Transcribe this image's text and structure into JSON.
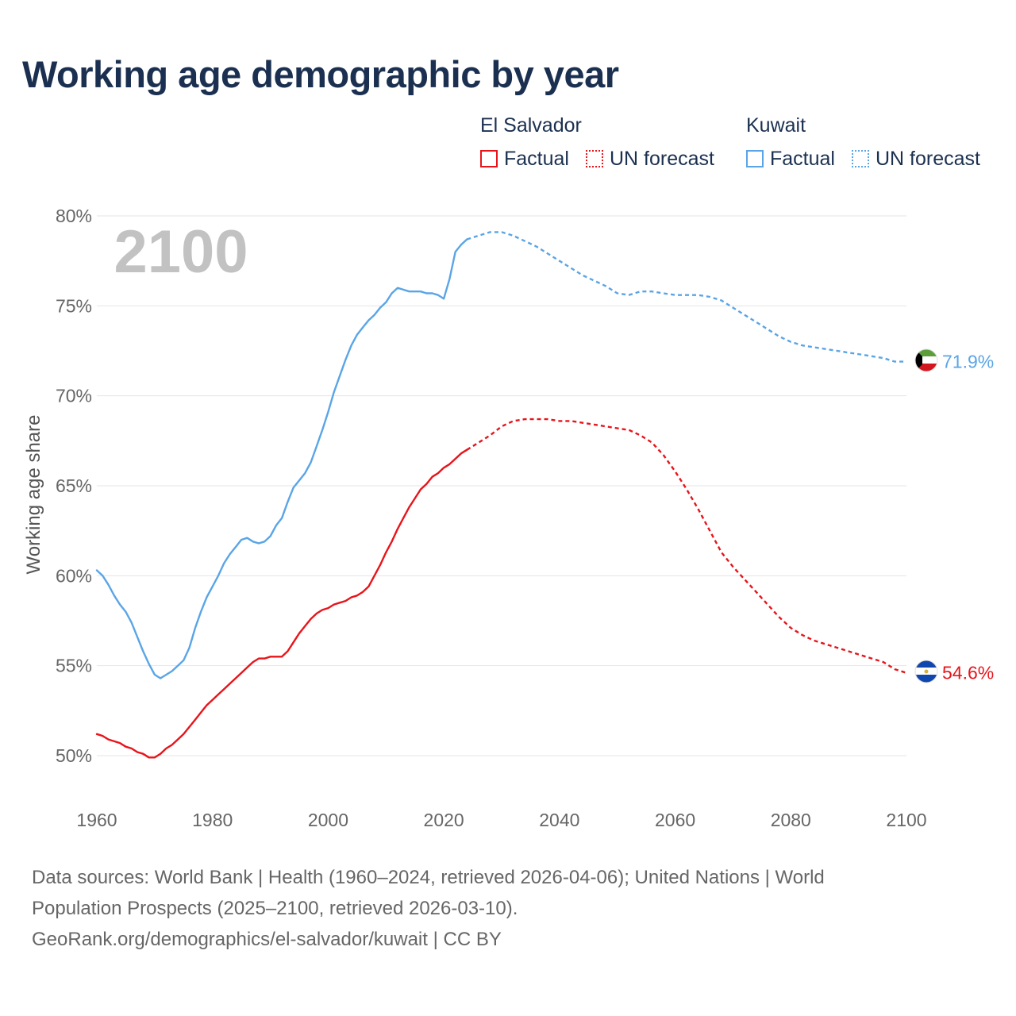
{
  "title": "Working age demographic by year",
  "legend": {
    "groups": [
      {
        "country": "El Salvador",
        "factual_label": "Factual",
        "forecast_label": "UN forecast",
        "color": "#e8141a"
      },
      {
        "country": "Kuwait",
        "factual_label": "Factual",
        "forecast_label": "UN forecast",
        "color": "#5aa5e6"
      }
    ]
  },
  "year_watermark": "2100",
  "footer": {
    "line1": "Data sources: World Bank | Health (1960–2024, retrieved 2026-04-06); United Nations | World",
    "line2": "Population Prospects (2025–2100, retrieved 2026-03-10).",
    "line3": "GeoRank.org/demographics/el-salvador/kuwait | CC BY"
  },
  "chart_data": {
    "type": "line",
    "title": "Working age demographic by year",
    "xlabel": "",
    "ylabel": "Working age share",
    "xlim": [
      1960,
      2100
    ],
    "ylim": [
      48,
      81
    ],
    "x_ticks": [
      1960,
      1980,
      2000,
      2020,
      2040,
      2060,
      2080,
      2100
    ],
    "y_ticks": [
      50,
      55,
      60,
      65,
      70,
      75,
      80
    ],
    "x_tick_labels": [
      "1960",
      "1980",
      "2000",
      "2020",
      "2040",
      "2060",
      "2080",
      "2100"
    ],
    "y_tick_labels": [
      "50%",
      "55%",
      "60%",
      "65%",
      "70%",
      "75%",
      "80%"
    ],
    "grid": true,
    "factual_end_year": 2024,
    "series": [
      {
        "name": "Kuwait",
        "color": "#5aa5e6",
        "end_label": "71.9%",
        "flag": "kuwait-flag",
        "points": [
          [
            1960,
            60.3
          ],
          [
            1961,
            60.0
          ],
          [
            1962,
            59.5
          ],
          [
            1963,
            58.9
          ],
          [
            1964,
            58.4
          ],
          [
            1965,
            58.0
          ],
          [
            1966,
            57.4
          ],
          [
            1967,
            56.6
          ],
          [
            1968,
            55.8
          ],
          [
            1969,
            55.1
          ],
          [
            1970,
            54.5
          ],
          [
            1971,
            54.3
          ],
          [
            1972,
            54.5
          ],
          [
            1973,
            54.7
          ],
          [
            1974,
            55.0
          ],
          [
            1975,
            55.3
          ],
          [
            1976,
            56.0
          ],
          [
            1977,
            57.1
          ],
          [
            1978,
            58.0
          ],
          [
            1979,
            58.8
          ],
          [
            1980,
            59.4
          ],
          [
            1981,
            60.0
          ],
          [
            1982,
            60.7
          ],
          [
            1983,
            61.2
          ],
          [
            1984,
            61.6
          ],
          [
            1985,
            62.0
          ],
          [
            1986,
            62.1
          ],
          [
            1987,
            61.9
          ],
          [
            1988,
            61.8
          ],
          [
            1989,
            61.9
          ],
          [
            1990,
            62.2
          ],
          [
            1991,
            62.8
          ],
          [
            1992,
            63.2
          ],
          [
            1993,
            64.1
          ],
          [
            1994,
            64.9
          ],
          [
            1995,
            65.3
          ],
          [
            1996,
            65.7
          ],
          [
            1997,
            66.3
          ],
          [
            1998,
            67.2
          ],
          [
            1999,
            68.1
          ],
          [
            2000,
            69.1
          ],
          [
            2001,
            70.2
          ],
          [
            2002,
            71.1
          ],
          [
            2003,
            72.0
          ],
          [
            2004,
            72.8
          ],
          [
            2005,
            73.4
          ],
          [
            2006,
            73.8
          ],
          [
            2007,
            74.2
          ],
          [
            2008,
            74.5
          ],
          [
            2009,
            74.9
          ],
          [
            2010,
            75.2
          ],
          [
            2011,
            75.7
          ],
          [
            2012,
            76.0
          ],
          [
            2013,
            75.9
          ],
          [
            2014,
            75.8
          ],
          [
            2015,
            75.8
          ],
          [
            2016,
            75.8
          ],
          [
            2017,
            75.7
          ],
          [
            2018,
            75.7
          ],
          [
            2019,
            75.6
          ],
          [
            2020,
            75.4
          ],
          [
            2021,
            76.5
          ],
          [
            2022,
            78.0
          ],
          [
            2023,
            78.4
          ],
          [
            2024,
            78.7
          ],
          [
            2026,
            78.9
          ],
          [
            2028,
            79.1
          ],
          [
            2030,
            79.1
          ],
          [
            2032,
            78.9
          ],
          [
            2034,
            78.6
          ],
          [
            2036,
            78.3
          ],
          [
            2038,
            77.9
          ],
          [
            2040,
            77.5
          ],
          [
            2042,
            77.1
          ],
          [
            2044,
            76.7
          ],
          [
            2046,
            76.4
          ],
          [
            2048,
            76.1
          ],
          [
            2050,
            75.7
          ],
          [
            2052,
            75.6
          ],
          [
            2054,
            75.8
          ],
          [
            2056,
            75.8
          ],
          [
            2058,
            75.7
          ],
          [
            2060,
            75.6
          ],
          [
            2062,
            75.6
          ],
          [
            2064,
            75.6
          ],
          [
            2066,
            75.5
          ],
          [
            2068,
            75.3
          ],
          [
            2070,
            74.9
          ],
          [
            2072,
            74.5
          ],
          [
            2074,
            74.1
          ],
          [
            2076,
            73.7
          ],
          [
            2078,
            73.3
          ],
          [
            2080,
            73.0
          ],
          [
            2082,
            72.8
          ],
          [
            2084,
            72.7
          ],
          [
            2086,
            72.6
          ],
          [
            2088,
            72.5
          ],
          [
            2090,
            72.4
          ],
          [
            2092,
            72.3
          ],
          [
            2094,
            72.2
          ],
          [
            2096,
            72.1
          ],
          [
            2098,
            71.9
          ],
          [
            2100,
            71.9
          ]
        ]
      },
      {
        "name": "El Salvador",
        "color": "#e8141a",
        "end_label": "54.6%",
        "flag": "el-salvador-flag",
        "points": [
          [
            1960,
            51.2
          ],
          [
            1961,
            51.1
          ],
          [
            1962,
            50.9
          ],
          [
            1963,
            50.8
          ],
          [
            1964,
            50.7
          ],
          [
            1965,
            50.5
          ],
          [
            1966,
            50.4
          ],
          [
            1967,
            50.2
          ],
          [
            1968,
            50.1
          ],
          [
            1969,
            49.9
          ],
          [
            1970,
            49.9
          ],
          [
            1971,
            50.1
          ],
          [
            1972,
            50.4
          ],
          [
            1973,
            50.6
          ],
          [
            1974,
            50.9
          ],
          [
            1975,
            51.2
          ],
          [
            1976,
            51.6
          ],
          [
            1977,
            52.0
          ],
          [
            1978,
            52.4
          ],
          [
            1979,
            52.8
          ],
          [
            1980,
            53.1
          ],
          [
            1981,
            53.4
          ],
          [
            1982,
            53.7
          ],
          [
            1983,
            54.0
          ],
          [
            1984,
            54.3
          ],
          [
            1985,
            54.6
          ],
          [
            1986,
            54.9
          ],
          [
            1987,
            55.2
          ],
          [
            1988,
            55.4
          ],
          [
            1989,
            55.4
          ],
          [
            1990,
            55.5
          ],
          [
            1991,
            55.5
          ],
          [
            1992,
            55.5
          ],
          [
            1993,
            55.8
          ],
          [
            1994,
            56.3
          ],
          [
            1995,
            56.8
          ],
          [
            1996,
            57.2
          ],
          [
            1997,
            57.6
          ],
          [
            1998,
            57.9
          ],
          [
            1999,
            58.1
          ],
          [
            2000,
            58.2
          ],
          [
            2001,
            58.4
          ],
          [
            2002,
            58.5
          ],
          [
            2003,
            58.6
          ],
          [
            2004,
            58.8
          ],
          [
            2005,
            58.9
          ],
          [
            2006,
            59.1
          ],
          [
            2007,
            59.4
          ],
          [
            2008,
            60.0
          ],
          [
            2009,
            60.6
          ],
          [
            2010,
            61.3
          ],
          [
            2011,
            61.9
          ],
          [
            2012,
            62.6
          ],
          [
            2013,
            63.2
          ],
          [
            2014,
            63.8
          ],
          [
            2015,
            64.3
          ],
          [
            2016,
            64.8
          ],
          [
            2017,
            65.1
          ],
          [
            2018,
            65.5
          ],
          [
            2019,
            65.7
          ],
          [
            2020,
            66.0
          ],
          [
            2021,
            66.2
          ],
          [
            2022,
            66.5
          ],
          [
            2023,
            66.8
          ],
          [
            2024,
            67.0
          ],
          [
            2026,
            67.4
          ],
          [
            2028,
            67.8
          ],
          [
            2030,
            68.3
          ],
          [
            2032,
            68.6
          ],
          [
            2034,
            68.7
          ],
          [
            2036,
            68.7
          ],
          [
            2038,
            68.7
          ],
          [
            2040,
            68.6
          ],
          [
            2042,
            68.6
          ],
          [
            2044,
            68.5
          ],
          [
            2046,
            68.4
          ],
          [
            2048,
            68.3
          ],
          [
            2050,
            68.2
          ],
          [
            2052,
            68.1
          ],
          [
            2054,
            67.8
          ],
          [
            2056,
            67.4
          ],
          [
            2058,
            66.7
          ],
          [
            2060,
            65.8
          ],
          [
            2062,
            64.8
          ],
          [
            2064,
            63.7
          ],
          [
            2066,
            62.5
          ],
          [
            2068,
            61.3
          ],
          [
            2070,
            60.5
          ],
          [
            2072,
            59.8
          ],
          [
            2074,
            59.1
          ],
          [
            2076,
            58.4
          ],
          [
            2078,
            57.7
          ],
          [
            2080,
            57.1
          ],
          [
            2082,
            56.7
          ],
          [
            2084,
            56.4
          ],
          [
            2086,
            56.2
          ],
          [
            2088,
            56.0
          ],
          [
            2090,
            55.8
          ],
          [
            2092,
            55.6
          ],
          [
            2094,
            55.4
          ],
          [
            2096,
            55.2
          ],
          [
            2098,
            54.8
          ],
          [
            2100,
            54.6
          ]
        ]
      }
    ]
  }
}
